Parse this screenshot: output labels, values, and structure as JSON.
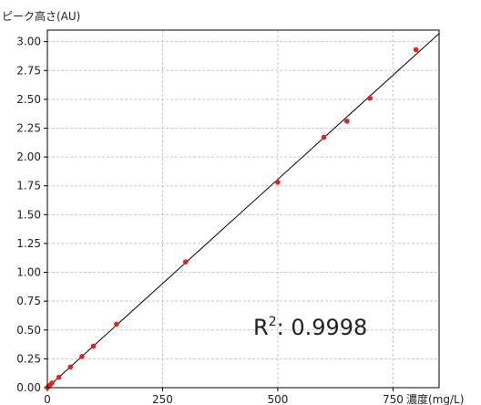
{
  "chart_data": {
    "type": "scatter",
    "title": "",
    "ylabel": "ピーク高さ(AU)",
    "xlabel": "濃度(mg/L)",
    "xlim": [
      0,
      850
    ],
    "ylim": [
      0,
      3.1
    ],
    "xticks": [
      "0",
      "250",
      "500",
      "750"
    ],
    "yticks": [
      "0.00",
      "0.25",
      "0.50",
      "0.75",
      "1.00",
      "1.25",
      "1.50",
      "1.75",
      "2.00",
      "2.25",
      "2.50",
      "2.75",
      "3.00"
    ],
    "grid": true,
    "series": [
      {
        "color": "#e32121",
        "points": [
          {
            "x": 0,
            "y": 0.0
          },
          {
            "x": 2,
            "y": 0.01
          },
          {
            "x": 5,
            "y": 0.02
          },
          {
            "x": 10,
            "y": 0.04
          },
          {
            "x": 25,
            "y": 0.09
          },
          {
            "x": 50,
            "y": 0.18
          },
          {
            "x": 75,
            "y": 0.27
          },
          {
            "x": 100,
            "y": 0.36
          },
          {
            "x": 150,
            "y": 0.55
          },
          {
            "x": 300,
            "y": 1.09
          },
          {
            "x": 500,
            "y": 1.78
          },
          {
            "x": 600,
            "y": 2.17
          },
          {
            "x": 650,
            "y": 2.31
          },
          {
            "x": 700,
            "y": 2.51
          },
          {
            "x": 800,
            "y": 2.93
          }
        ]
      }
    ],
    "fit_line": {
      "color": "#000000",
      "from": {
        "x": 0,
        "y": 0.0
      },
      "to": {
        "x": 850,
        "y": 3.07
      }
    },
    "annotation": {
      "base": "R",
      "sup": "2",
      "value": ": 0.9998"
    }
  }
}
